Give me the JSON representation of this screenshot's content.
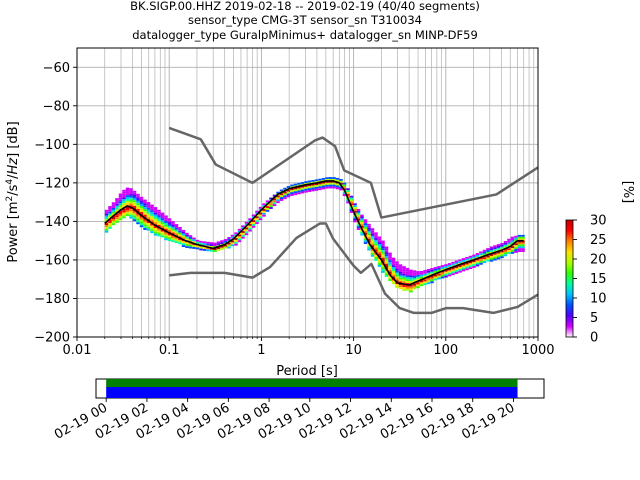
{
  "header": {
    "line1": "BK.SIGP.00.HHZ   2019-02-18 -- 2019-02-19  (40/40 segments)",
    "line2": "sensor_type CMG-3T sensor_sn T310034",
    "line3": "datalogger_type GuralpMinimus+ datalogger_sn MINP-DF59"
  },
  "chart_data": [
    {
      "type": "heatmap",
      "title": "BK.SIGP.00.HHZ   2019-02-18 -- 2019-02-19  (40/40 segments)",
      "xlabel": "Period [s]",
      "ylabel": "Power [m2/s4/Hz] [dB]",
      "xscale": "log",
      "xlim": [
        0.01,
        1000
      ],
      "ylim": [
        -200,
        -50
      ],
      "grid": true,
      "xtick_labels": [
        "0.01",
        "0.1",
        "1",
        "10",
        "100",
        "1000"
      ],
      "xtick_values": [
        0.01,
        0.1,
        1,
        10,
        100,
        1000
      ],
      "ytick_values": [
        -200,
        -180,
        -160,
        -140,
        -120,
        -100,
        -80,
        -60
      ],
      "ytick_labels": [
        "−200",
        "−180",
        "−160",
        "−140",
        "−120",
        "−100",
        "−80",
        "−60"
      ],
      "colorbar": {
        "label": "[%]",
        "range": [
          0,
          30
        ],
        "ticks": [
          "0",
          "5",
          "10",
          "15",
          "20",
          "25",
          "30"
        ]
      },
      "mean_curve": {
        "x": [
          0.02,
          0.025,
          0.03,
          0.035,
          0.04,
          0.05,
          0.07,
          0.1,
          0.15,
          0.2,
          0.3,
          0.4,
          0.5,
          0.7,
          1,
          1.5,
          2,
          3,
          4,
          5,
          6,
          7,
          8,
          10,
          12,
          15,
          20,
          25,
          30,
          40,
          50,
          70,
          100,
          150,
          200,
          300,
          400,
          500,
          600,
          700
        ],
        "y": [
          -141,
          -137,
          -134,
          -132,
          -133,
          -137,
          -142,
          -146,
          -150,
          -152,
          -154,
          -152,
          -149,
          -142,
          -134,
          -126,
          -123,
          -121,
          -120,
          -119,
          -119,
          -120,
          -124,
          -135,
          -143,
          -152,
          -160,
          -168,
          -172,
          -173,
          -171,
          -168,
          -165,
          -162,
          -160,
          -157,
          -155,
          -153,
          -150,
          -150
        ]
      },
      "noise_model_high": {
        "x": [
          0.1,
          0.22,
          0.32,
          0.8,
          3.8,
          4.6,
          6.3,
          7.9,
          15.4,
          20,
          354,
          1000
        ],
        "y": [
          -91.5,
          -97.4,
          -110.5,
          -120,
          -98,
          -96.5,
          -101,
          -113.5,
          -120,
          -138,
          -126,
          -112
        ]
      },
      "noise_model_low": {
        "x": [
          0.1,
          0.17,
          0.4,
          0.8,
          1.24,
          2.4,
          4.3,
          5,
          6,
          10,
          12,
          15.6,
          21.9,
          31.6,
          45,
          70,
          101,
          154,
          328,
          600,
          1000
        ],
        "y": [
          -168,
          -166.7,
          -166.7,
          -169.2,
          -163.7,
          -148.6,
          -141.1,
          -141.1,
          -149,
          -163,
          -166.7,
          -162.1,
          -177.5,
          -185,
          -187.5,
          -187.5,
          -185,
          -185,
          -187.5,
          -184.4,
          -178
        ]
      },
      "density_bands": [
        {
          "x": 0.02,
          "y0": -145,
          "y1": -134
        },
        {
          "x": 0.025,
          "y0": -141,
          "y1": -129
        },
        {
          "x": 0.03,
          "y0": -138,
          "y1": -124
        },
        {
          "x": 0.035,
          "y0": -137,
          "y1": -122
        },
        {
          "x": 0.04,
          "y0": -139,
          "y1": -124
        },
        {
          "x": 0.05,
          "y0": -143,
          "y1": -128
        },
        {
          "x": 0.07,
          "y0": -147,
          "y1": -133
        },
        {
          "x": 0.1,
          "y0": -150,
          "y1": -139
        },
        {
          "x": 0.15,
          "y0": -153,
          "y1": -146
        },
        {
          "x": 0.2,
          "y0": -154,
          "y1": -150
        },
        {
          "x": 0.3,
          "y0": -155,
          "y1": -151
        },
        {
          "x": 0.4,
          "y0": -154,
          "y1": -149
        },
        {
          "x": 0.5,
          "y0": -152,
          "y1": -146
        },
        {
          "x": 0.7,
          "y0": -145,
          "y1": -139
        },
        {
          "x": 1,
          "y0": -137,
          "y1": -131
        },
        {
          "x": 1.5,
          "y0": -129,
          "y1": -124
        },
        {
          "x": 2,
          "y0": -126,
          "y1": -121
        },
        {
          "x": 3,
          "y0": -124,
          "y1": -119
        },
        {
          "x": 4,
          "y0": -123,
          "y1": -118
        },
        {
          "x": 5,
          "y0": -122,
          "y1": -117
        },
        {
          "x": 6,
          "y0": -122,
          "y1": -117
        },
        {
          "x": 7,
          "y0": -123,
          "y1": -118
        },
        {
          "x": 8,
          "y0": -128,
          "y1": -121
        },
        {
          "x": 10,
          "y0": -140,
          "y1": -131
        },
        {
          "x": 12,
          "y0": -148,
          "y1": -137
        },
        {
          "x": 15,
          "y0": -157,
          "y1": -143
        },
        {
          "x": 20,
          "y0": -166,
          "y1": -150
        },
        {
          "x": 25,
          "y0": -172,
          "y1": -158
        },
        {
          "x": 30,
          "y0": -175,
          "y1": -162
        },
        {
          "x": 40,
          "y0": -176,
          "y1": -165
        },
        {
          "x": 50,
          "y0": -174,
          "y1": -166
        },
        {
          "x": 70,
          "y0": -171,
          "y1": -164
        },
        {
          "x": 100,
          "y0": -168,
          "y1": -162
        },
        {
          "x": 150,
          "y0": -165,
          "y1": -159
        },
        {
          "x": 200,
          "y0": -163,
          "y1": -157
        },
        {
          "x": 300,
          "y0": -160,
          "y1": -153
        },
        {
          "x": 400,
          "y0": -158,
          "y1": -151
        },
        {
          "x": 500,
          "y0": -156,
          "y1": -148
        },
        {
          "x": 600,
          "y0": -155,
          "y1": -147
        },
        {
          "x": 700,
          "y0": -155,
          "y1": -147
        }
      ]
    },
    {
      "type": "timeline",
      "tick_labels": [
        "02-19 00",
        "02-19 02",
        "02-19 04",
        "02-19 06",
        "02-19 08",
        "02-19 10",
        "02-19 12",
        "02-19 14",
        "02-19 16",
        "02-19 18",
        "02-19 20"
      ],
      "tick_hours": [
        0,
        2,
        4,
        6,
        8,
        10,
        12,
        14,
        16,
        18,
        20
      ],
      "xlim_hours": [
        -0.5,
        21.5
      ],
      "coverage_hours": [
        0,
        20.2
      ],
      "colors": {
        "data": "#0000ff",
        "segments": "#008000"
      }
    }
  ],
  "colors": {
    "noise_model": "#666666",
    "mean": "#000000",
    "grid": "#b0b0b0",
    "cmap": [
      "#ffffff",
      "#d000ff",
      "#5000ff",
      "#0050ff",
      "#00c0ff",
      "#00ffa0",
      "#30ff00",
      "#b0ff00",
      "#ffe000",
      "#ff8000",
      "#ff0000",
      "#c00000"
    ]
  }
}
